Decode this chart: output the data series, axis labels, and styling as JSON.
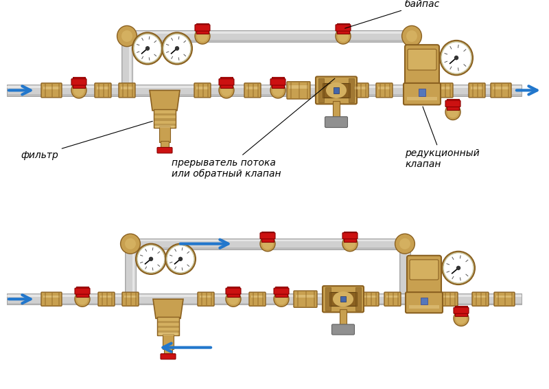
{
  "bg_color": "#ffffff",
  "pipe_color": "#d0d0d0",
  "pipe_highlight": "#f0f0f0",
  "pipe_shadow": "#aaaaaa",
  "pipe_edge": "#888888",
  "brass_base": "#c8a050",
  "brass_mid": "#d4b060",
  "brass_light": "#e8cc88",
  "brass_dark": "#8a6020",
  "brass_shadow": "#604010",
  "red_valve": "#cc1111",
  "red_dark": "#880000",
  "blue_arrow": "#2277cc",
  "gauge_bg": "#f8f8f0",
  "gauge_ring": "#d0c080",
  "gray_fitting": "#909090",
  "gray_dark": "#606060",
  "label_байпас": "байпас",
  "label_фильтр": "фильтр",
  "label_прерыватель": "прерыватель потока\nили обратный клапан",
  "label_редукционный": "редукционный\nклапан",
  "font_size": 9
}
